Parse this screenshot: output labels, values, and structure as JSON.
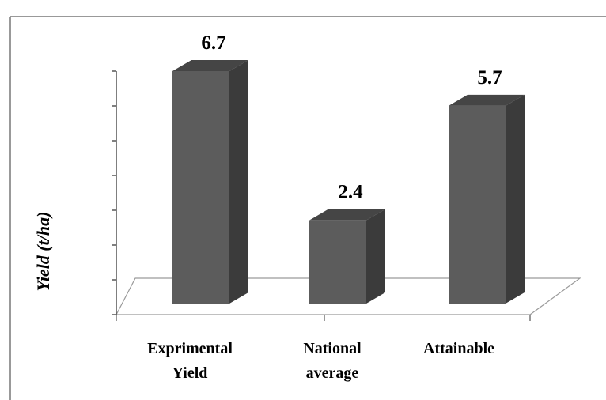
{
  "chart_data": {
    "type": "bar",
    "style": "3d-column",
    "categories": [
      [
        "Exprimental",
        "Yield"
      ],
      [
        "National",
        "average"
      ],
      [
        "Attainable"
      ]
    ],
    "values": [
      6.7,
      2.4,
      5.7
    ],
    "data_labels": [
      "6.7",
      "2.4",
      "5.7"
    ],
    "title": "",
    "xlabel": "",
    "ylabel": "Yield (t/ha)",
    "ylim": [
      0,
      7
    ],
    "y_tick_labels_shown": false,
    "grid": false,
    "legend": "none"
  },
  "colors": {
    "bar_front": "#5c5c5c",
    "bar_side": "#3b3b3b",
    "bar_top": "#454545",
    "floor_line": "#9a9a9a",
    "axis": "#555555",
    "border": "#333333"
  }
}
